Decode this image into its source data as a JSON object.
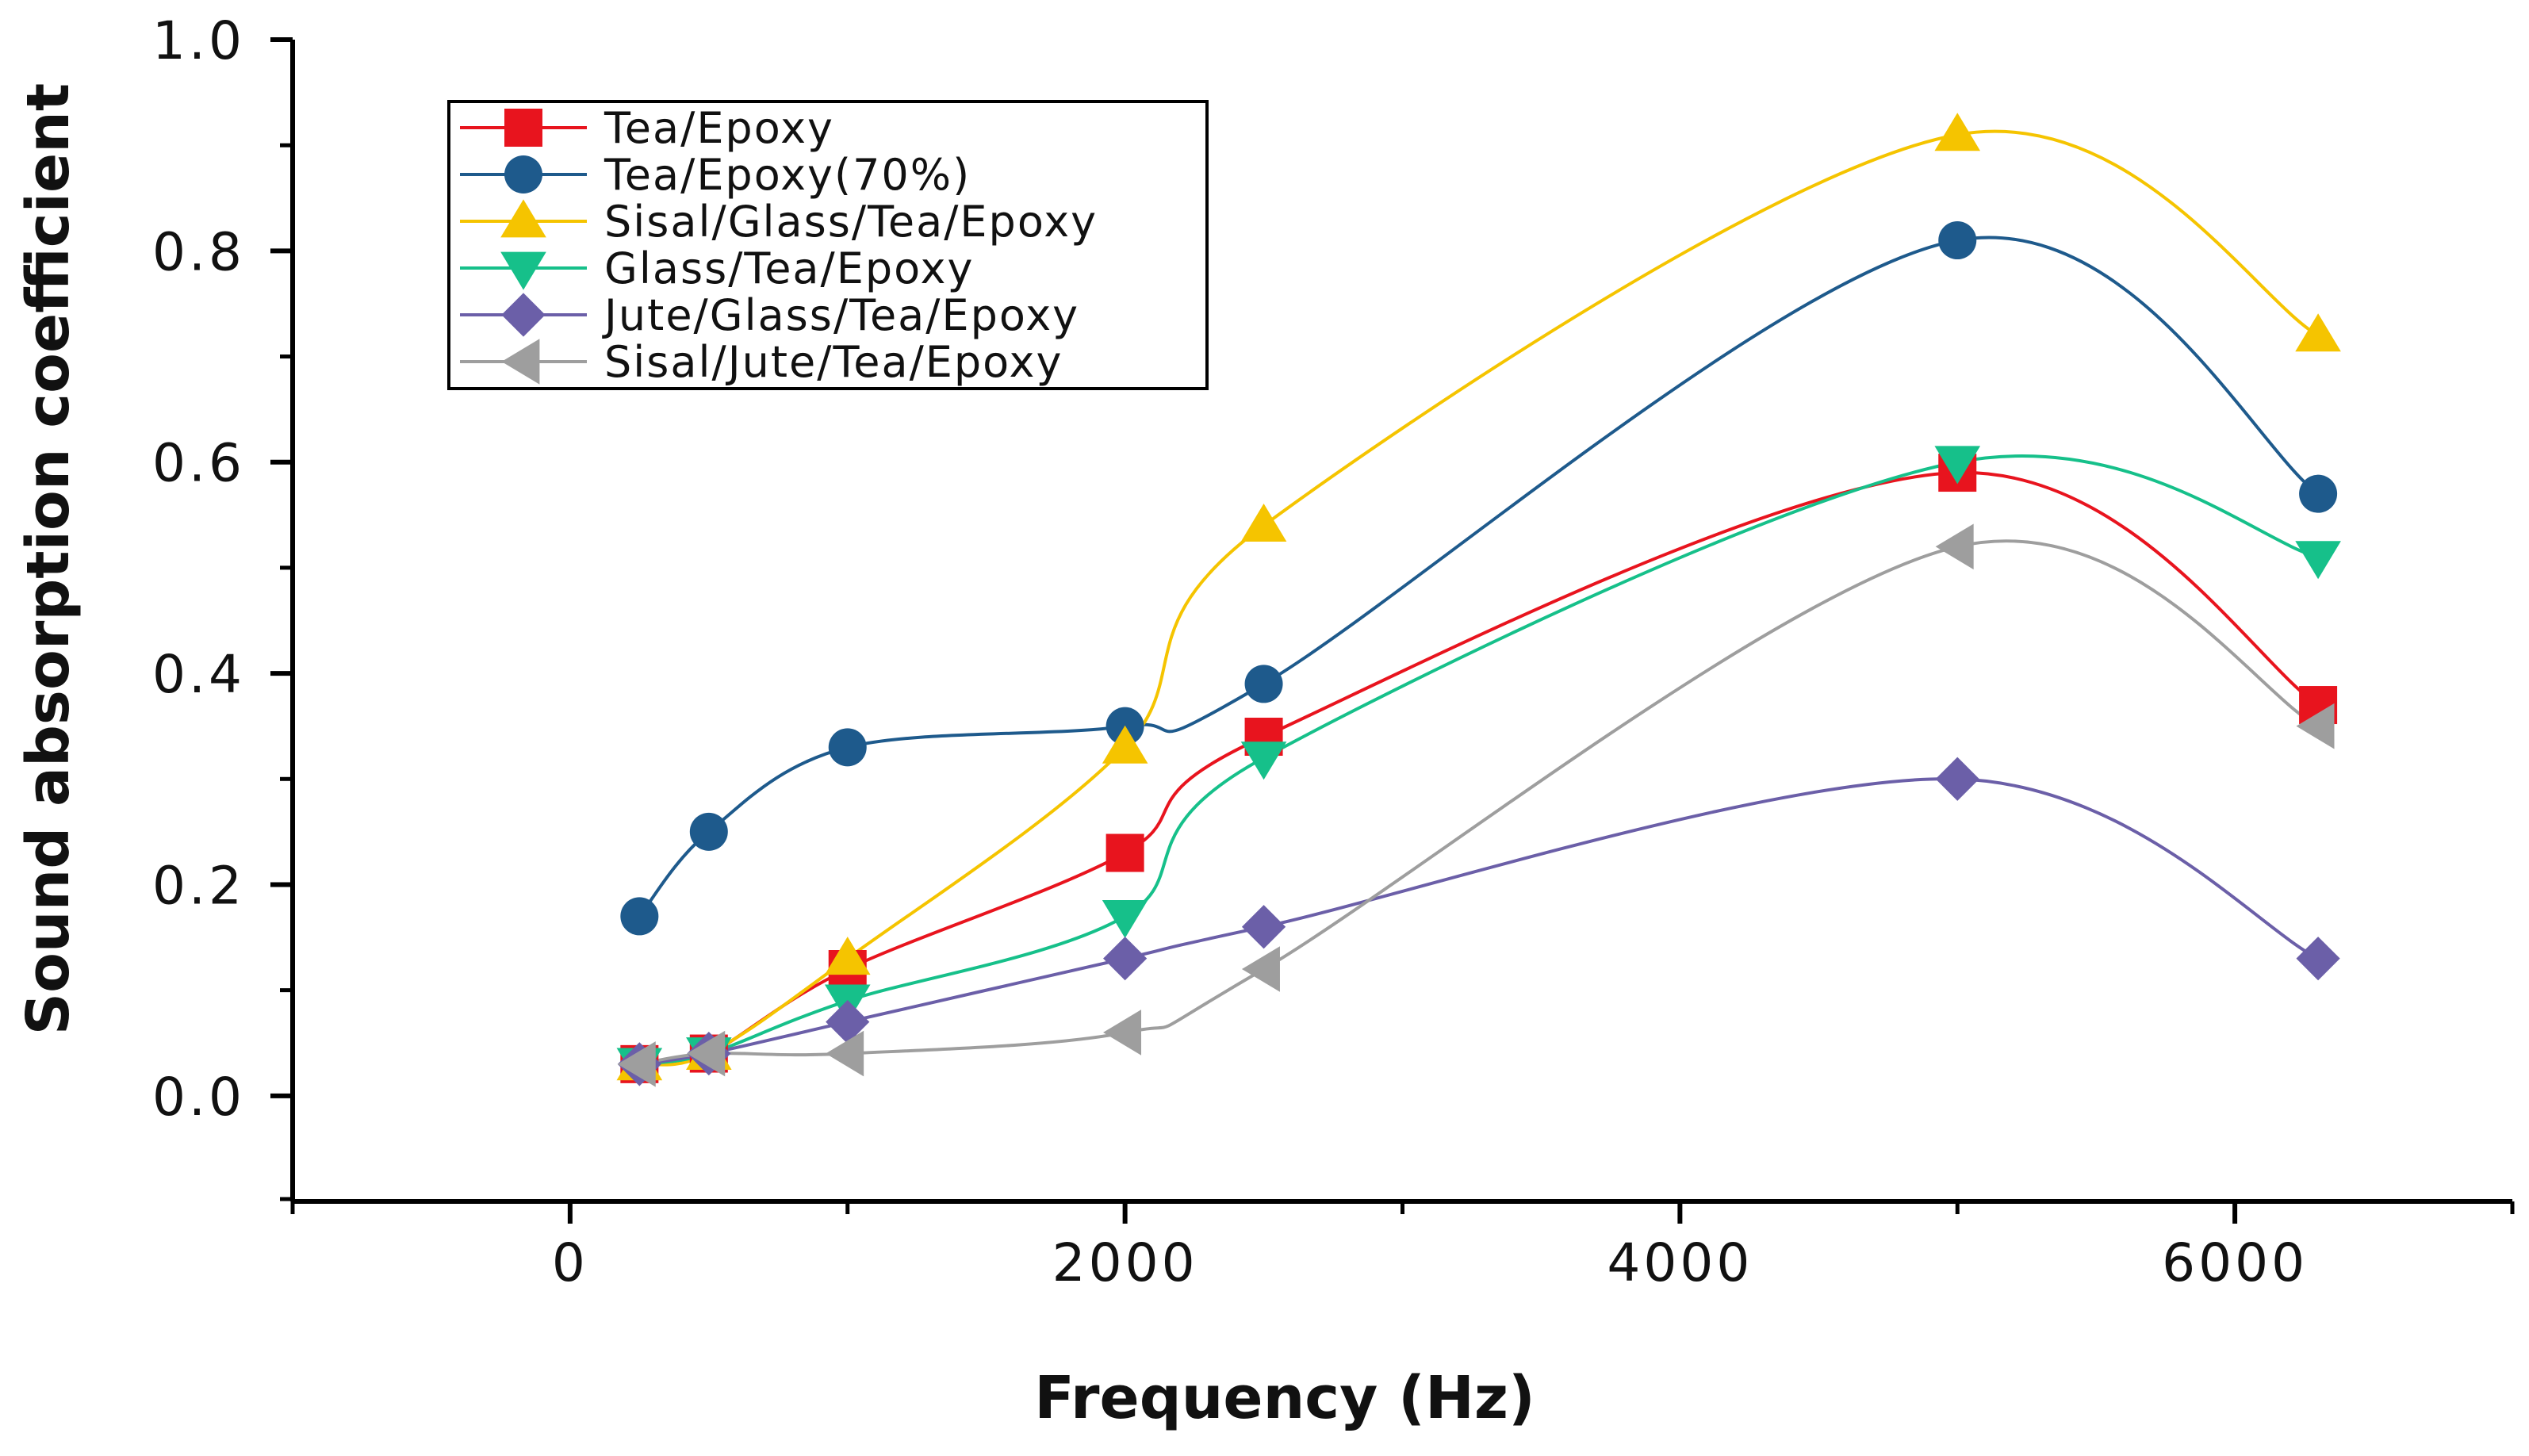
{
  "chart_data": {
    "type": "line",
    "title": "",
    "xlabel": "Frequency (Hz)",
    "ylabel": "Sound absorption coefficient",
    "xlim": [
      -1000,
      7000
    ],
    "ylim": [
      -0.1,
      1.0
    ],
    "xticks": [
      0,
      2000,
      4000,
      6000
    ],
    "xtick_labels": [
      "0",
      "2000",
      "4000",
      "6000"
    ],
    "yticks": [
      0.0,
      0.2,
      0.4,
      0.6,
      0.8,
      1.0
    ],
    "ytick_labels": [
      "0.0",
      "0.2",
      "0.4",
      "0.6",
      "0.8",
      "1.0"
    ],
    "grid": false,
    "legend_position": "top-left",
    "series": [
      {
        "name": "Tea/Epoxy",
        "color": "#e8141e",
        "marker": "square",
        "x": [
          250,
          500,
          1000,
          2000,
          2500,
          5000,
          6300
        ],
        "y": [
          0.03,
          0.04,
          0.12,
          0.23,
          0.34,
          0.59,
          0.37
        ]
      },
      {
        "name": "Tea/Epoxy(70%)",
        "color": "#1e5a8c",
        "marker": "circle",
        "x": [
          250,
          500,
          1000,
          2000,
          2500,
          5000,
          6300
        ],
        "y": [
          0.17,
          0.25,
          0.33,
          0.35,
          0.39,
          0.81,
          0.57
        ]
      },
      {
        "name": "Sisal/Glass/Tea/Epoxy",
        "color": "#f5c400",
        "marker": "triangle-up",
        "x": [
          250,
          500,
          1000,
          2000,
          2500,
          5000,
          6300
        ],
        "y": [
          0.03,
          0.04,
          0.13,
          0.33,
          0.54,
          0.91,
          0.72
        ]
      },
      {
        "name": "Glass/Tea/Epoxy",
        "color": "#16c08a",
        "marker": "triangle-down",
        "x": [
          250,
          500,
          1000,
          2000,
          2500,
          5000,
          6300
        ],
        "y": [
          0.03,
          0.04,
          0.09,
          0.17,
          0.32,
          0.6,
          0.51
        ]
      },
      {
        "name": "Jute/Glass/Tea/Epoxy",
        "color": "#6b5fa8",
        "marker": "diamond",
        "x": [
          250,
          500,
          1000,
          2000,
          2500,
          5000,
          6300
        ],
        "y": [
          0.03,
          0.04,
          0.07,
          0.13,
          0.16,
          0.3,
          0.13
        ]
      },
      {
        "name": "Sisal/Jute/Tea/Epoxy",
        "color": "#9e9e9e",
        "marker": "triangle-left",
        "x": [
          250,
          500,
          1000,
          2000,
          2500,
          5000,
          6300
        ],
        "y": [
          0.03,
          0.04,
          0.04,
          0.06,
          0.12,
          0.52,
          0.35
        ]
      }
    ]
  }
}
